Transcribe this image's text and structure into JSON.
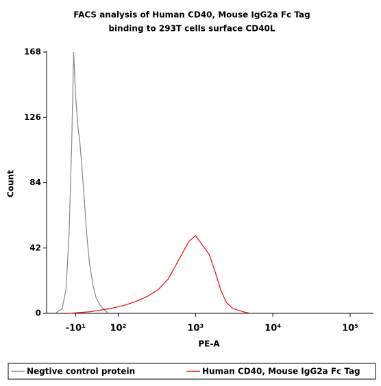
{
  "chart_data": {
    "type": "line",
    "title": [
      "FACS analysis of Human CD40, Mouse IgG2a Fc Tag",
      "binding to 293T cells surface CD40L"
    ],
    "x_label": "PE-A",
    "y_label": "Count",
    "xscale": "biexponential",
    "xlim": [
      -85,
      200000
    ],
    "xticks": [
      {
        "value": -10,
        "label": "-10¹"
      },
      {
        "value": 100,
        "label": "10²"
      },
      {
        "value": 1000,
        "label": "10³"
      },
      {
        "value": 10000,
        "label": "10⁴"
      },
      {
        "value": 100000,
        "label": "10⁵"
      }
    ],
    "ylim": [
      0,
      168
    ],
    "yticks": [
      0,
      42,
      84,
      126,
      168
    ],
    "series": [
      {
        "name": "Negtive control protein",
        "color": "#8c8c8c",
        "x": [
          -63,
          -45,
          -35,
          -27,
          -20,
          -15,
          -10,
          -4,
          1,
          6,
          12,
          19,
          26,
          35,
          43,
          54,
          65,
          75
        ],
        "values": [
          0,
          3,
          15,
          50,
          110,
          168,
          140,
          120,
          110,
          95,
          75,
          50,
          32,
          18,
          10,
          5,
          2,
          0
        ]
      },
      {
        "name": "Human CD40, Mouse IgG2a Fc Tag",
        "color": "#e8141b",
        "x": [
          -27,
          26,
          79,
          118,
          177,
          240,
          326,
          443,
          543,
          666,
          817,
          1000,
          1225,
          1503,
          1841,
          2123,
          2500,
          3069,
          4160,
          5105
        ],
        "values": [
          0,
          1,
          3,
          5,
          8,
          11,
          15,
          22,
          30,
          38,
          46,
          50,
          44,
          38,
          25,
          15,
          7,
          3,
          1,
          0
        ]
      }
    ]
  }
}
